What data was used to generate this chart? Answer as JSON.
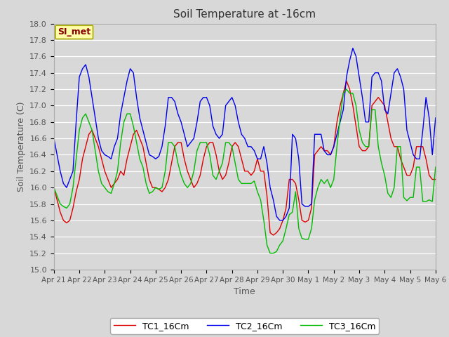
{
  "title": "Soil Temperature at -16cm",
  "xlabel": "Time",
  "ylabel": "Soil Temperature (C)",
  "ylim": [
    15.0,
    18.0
  ],
  "yticks": [
    15.0,
    15.2,
    15.4,
    15.6,
    15.8,
    16.0,
    16.2,
    16.4,
    16.6,
    16.8,
    17.0,
    17.2,
    17.4,
    17.6,
    17.8,
    18.0
  ],
  "bg_color": "#d8d8d8",
  "plot_bg_color": "#d8d8d8",
  "annotation_text": "SI_met",
  "annotation_facecolor": "#ffffaa",
  "annotation_edgecolor": "#aaaa00",
  "annotation_textcolor": "#880000",
  "series": {
    "TC1_16Cm": {
      "color": "#dd0000",
      "times_days": [
        0.0,
        0.125,
        0.25,
        0.375,
        0.5,
        0.625,
        0.75,
        0.875,
        1.0,
        1.125,
        1.25,
        1.375,
        1.5,
        1.625,
        1.75,
        1.875,
        2.0,
        2.125,
        2.25,
        2.375,
        2.5,
        2.625,
        2.75,
        2.875,
        3.0,
        3.125,
        3.25,
        3.375,
        3.5,
        3.625,
        3.75,
        3.875,
        4.0,
        4.125,
        4.25,
        4.375,
        4.5,
        4.625,
        4.75,
        4.875,
        5.0,
        5.125,
        5.25,
        5.375,
        5.5,
        5.625,
        5.75,
        5.875,
        6.0,
        6.125,
        6.25,
        6.375,
        6.5,
        6.625,
        6.75,
        6.875,
        7.0,
        7.125,
        7.25,
        7.375,
        7.5,
        7.625,
        7.75,
        7.875,
        8.0,
        8.125,
        8.25,
        8.375,
        8.5,
        8.625,
        8.75,
        8.875,
        9.0,
        9.125,
        9.25,
        9.375,
        9.5,
        9.625,
        9.75,
        9.875,
        10.0,
        10.125,
        10.25,
        10.375,
        10.5,
        10.625,
        10.75,
        10.875,
        11.0,
        11.125,
        11.25,
        11.375,
        11.5,
        11.625,
        11.75,
        11.875,
        12.0,
        12.125,
        12.25,
        12.375,
        12.5,
        12.625,
        12.75,
        12.875,
        13.0,
        13.125,
        13.25,
        13.375,
        13.5,
        13.625,
        13.75,
        13.875,
        14.0,
        14.125,
        14.25,
        14.375,
        14.5,
        14.625,
        14.75,
        14.875,
        15.0
      ],
      "values": [
        16.0,
        15.85,
        15.7,
        15.6,
        15.57,
        15.6,
        15.75,
        15.95,
        16.1,
        16.35,
        16.5,
        16.65,
        16.7,
        16.6,
        16.5,
        16.35,
        16.2,
        16.1,
        16.0,
        16.05,
        16.1,
        16.2,
        16.15,
        16.35,
        16.5,
        16.65,
        16.7,
        16.6,
        16.5,
        16.3,
        16.1,
        16.0,
        16.0,
        15.98,
        15.95,
        16.0,
        16.1,
        16.3,
        16.5,
        16.55,
        16.55,
        16.35,
        16.2,
        16.1,
        16.0,
        16.05,
        16.15,
        16.35,
        16.5,
        16.55,
        16.55,
        16.4,
        16.2,
        16.1,
        16.15,
        16.3,
        16.5,
        16.55,
        16.5,
        16.35,
        16.2,
        16.2,
        16.15,
        16.2,
        16.35,
        16.2,
        16.2,
        15.9,
        15.45,
        15.42,
        15.45,
        15.5,
        15.6,
        15.75,
        16.1,
        16.1,
        16.05,
        15.85,
        15.6,
        15.58,
        15.6,
        15.75,
        16.4,
        16.45,
        16.5,
        16.45,
        16.45,
        16.4,
        16.5,
        16.8,
        17.0,
        17.15,
        17.3,
        17.2,
        17.0,
        16.75,
        16.5,
        16.45,
        16.45,
        16.5,
        17.0,
        17.05,
        17.1,
        17.05,
        17.0,
        16.8,
        16.6,
        16.5,
        16.5,
        16.35,
        16.25,
        16.15,
        16.15,
        16.25,
        16.5,
        16.5,
        16.5,
        16.35,
        16.15,
        16.1,
        16.1
      ]
    },
    "TC2_16Cm": {
      "color": "#0000ee",
      "times_days": [
        0.0,
        0.125,
        0.25,
        0.375,
        0.5,
        0.625,
        0.75,
        0.875,
        1.0,
        1.125,
        1.25,
        1.375,
        1.5,
        1.625,
        1.75,
        1.875,
        2.0,
        2.125,
        2.25,
        2.375,
        2.5,
        2.625,
        2.75,
        2.875,
        3.0,
        3.125,
        3.25,
        3.375,
        3.5,
        3.625,
        3.75,
        3.875,
        4.0,
        4.125,
        4.25,
        4.375,
        4.5,
        4.625,
        4.75,
        4.875,
        5.0,
        5.125,
        5.25,
        5.375,
        5.5,
        5.625,
        5.75,
        5.875,
        6.0,
        6.125,
        6.25,
        6.375,
        6.5,
        6.625,
        6.75,
        6.875,
        7.0,
        7.125,
        7.25,
        7.375,
        7.5,
        7.625,
        7.75,
        7.875,
        8.0,
        8.125,
        8.25,
        8.375,
        8.5,
        8.625,
        8.75,
        8.875,
        9.0,
        9.125,
        9.25,
        9.375,
        9.5,
        9.625,
        9.75,
        9.875,
        10.0,
        10.125,
        10.25,
        10.375,
        10.5,
        10.625,
        10.75,
        10.875,
        11.0,
        11.125,
        11.25,
        11.375,
        11.5,
        11.625,
        11.75,
        11.875,
        12.0,
        12.125,
        12.25,
        12.375,
        12.5,
        12.625,
        12.75,
        12.875,
        13.0,
        13.125,
        13.25,
        13.375,
        13.5,
        13.625,
        13.75,
        13.875,
        14.0,
        14.125,
        14.25,
        14.375,
        14.5,
        14.625,
        14.75,
        14.875,
        15.0
      ],
      "values": [
        16.6,
        16.4,
        16.2,
        16.05,
        16.0,
        16.1,
        16.2,
        16.8,
        17.35,
        17.45,
        17.5,
        17.35,
        17.1,
        16.85,
        16.6,
        16.45,
        16.4,
        16.38,
        16.35,
        16.5,
        16.6,
        16.9,
        17.1,
        17.3,
        17.45,
        17.4,
        17.1,
        16.85,
        16.7,
        16.55,
        16.4,
        16.38,
        16.35,
        16.38,
        16.5,
        16.75,
        17.1,
        17.1,
        17.05,
        16.9,
        16.8,
        16.65,
        16.5,
        16.55,
        16.6,
        16.8,
        17.05,
        17.1,
        17.1,
        17.0,
        16.75,
        16.65,
        16.6,
        16.65,
        17.0,
        17.05,
        17.1,
        17.0,
        16.8,
        16.65,
        16.6,
        16.5,
        16.5,
        16.45,
        16.35,
        16.35,
        16.5,
        16.3,
        16.0,
        15.85,
        15.65,
        15.6,
        15.6,
        15.65,
        15.75,
        16.65,
        16.6,
        16.35,
        15.8,
        15.77,
        15.77,
        15.8,
        16.65,
        16.65,
        16.65,
        16.45,
        16.4,
        16.4,
        16.5,
        16.65,
        16.8,
        16.95,
        17.35,
        17.55,
        17.7,
        17.6,
        17.35,
        17.1,
        16.8,
        16.8,
        17.35,
        17.4,
        17.4,
        17.3,
        16.95,
        16.9,
        17.15,
        17.4,
        17.45,
        17.35,
        17.2,
        16.7,
        16.55,
        16.4,
        16.35,
        16.35,
        16.7,
        17.1,
        16.85,
        16.4,
        16.85
      ]
    },
    "TC3_16Cm": {
      "color": "#00bb00",
      "times_days": [
        0.0,
        0.125,
        0.25,
        0.375,
        0.5,
        0.625,
        0.75,
        0.875,
        1.0,
        1.125,
        1.25,
        1.375,
        1.5,
        1.625,
        1.75,
        1.875,
        2.0,
        2.125,
        2.25,
        2.375,
        2.5,
        2.625,
        2.75,
        2.875,
        3.0,
        3.125,
        3.25,
        3.375,
        3.5,
        3.625,
        3.75,
        3.875,
        4.0,
        4.125,
        4.25,
        4.375,
        4.5,
        4.625,
        4.75,
        4.875,
        5.0,
        5.125,
        5.25,
        5.375,
        5.5,
        5.625,
        5.75,
        5.875,
        6.0,
        6.125,
        6.25,
        6.375,
        6.5,
        6.625,
        6.75,
        6.875,
        7.0,
        7.125,
        7.25,
        7.375,
        7.5,
        7.625,
        7.75,
        7.875,
        8.0,
        8.125,
        8.25,
        8.375,
        8.5,
        8.625,
        8.75,
        8.875,
        9.0,
        9.125,
        9.25,
        9.375,
        9.5,
        9.625,
        9.75,
        9.875,
        10.0,
        10.125,
        10.25,
        10.375,
        10.5,
        10.625,
        10.75,
        10.875,
        11.0,
        11.125,
        11.25,
        11.375,
        11.5,
        11.625,
        11.75,
        11.875,
        12.0,
        12.125,
        12.25,
        12.375,
        12.5,
        12.625,
        12.75,
        12.875,
        13.0,
        13.125,
        13.25,
        13.375,
        13.5,
        13.625,
        13.75,
        13.875,
        14.0,
        14.125,
        14.25,
        14.375,
        14.5,
        14.625,
        14.75,
        14.875,
        15.0
      ],
      "values": [
        16.0,
        15.9,
        15.8,
        15.77,
        15.75,
        15.8,
        16.0,
        16.35,
        16.7,
        16.85,
        16.9,
        16.8,
        16.7,
        16.45,
        16.2,
        16.05,
        16.0,
        15.95,
        15.93,
        16.05,
        16.2,
        16.55,
        16.8,
        16.9,
        16.9,
        16.75,
        16.55,
        16.35,
        16.25,
        16.05,
        15.93,
        15.95,
        16.0,
        15.98,
        16.0,
        16.2,
        16.55,
        16.55,
        16.5,
        16.3,
        16.15,
        16.05,
        16.0,
        16.05,
        16.2,
        16.45,
        16.55,
        16.55,
        16.55,
        16.4,
        16.15,
        16.1,
        16.2,
        16.3,
        16.55,
        16.55,
        16.5,
        16.3,
        16.1,
        16.05,
        16.05,
        16.05,
        16.05,
        16.08,
        15.95,
        15.85,
        15.6,
        15.3,
        15.2,
        15.2,
        15.22,
        15.3,
        15.35,
        15.5,
        15.67,
        15.7,
        15.95,
        15.5,
        15.38,
        15.37,
        15.37,
        15.5,
        15.85,
        16.0,
        16.1,
        16.05,
        16.1,
        16.0,
        16.1,
        16.5,
        16.85,
        17.15,
        17.2,
        17.15,
        17.15,
        17.0,
        16.7,
        16.55,
        16.5,
        16.5,
        16.95,
        16.95,
        16.5,
        16.3,
        16.15,
        15.93,
        15.88,
        16.0,
        16.5,
        16.5,
        15.88,
        15.84,
        15.88,
        15.88,
        16.25,
        16.25,
        15.83,
        15.83,
        15.85,
        15.83,
        16.25
      ]
    }
  },
  "xtick_labels": [
    "Apr 21",
    "Apr 22",
    "Apr 23",
    "Apr 24",
    "Apr 25",
    "Apr 26",
    "Apr 27",
    "Apr 28",
    "Apr 29",
    "Apr 30",
    "May 1",
    "May 2",
    "May 3",
    "May 4",
    "May 5",
    "May 6"
  ],
  "xtick_positions_days": [
    0,
    1,
    2,
    3,
    4,
    5,
    6,
    7,
    8,
    9,
    10,
    11,
    12,
    13,
    14,
    15
  ]
}
